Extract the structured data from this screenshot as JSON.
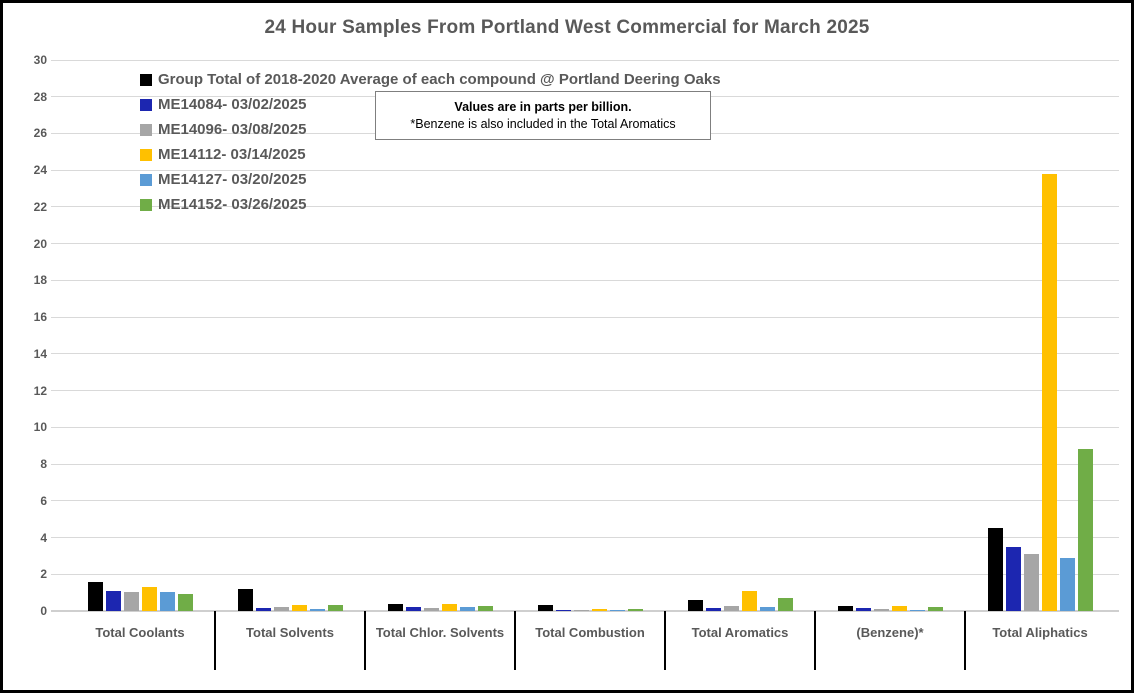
{
  "title": "24 Hour Samples From Portland West Commercial for March 2025",
  "annotation": {
    "line1": "Values are in parts per billion.",
    "line2": "*Benzene is also included in the Total Aromatics"
  },
  "colors": {
    "title_text": "#595959",
    "axis_text": "#595959",
    "gridline": "#D9D9D9",
    "category_divider": "#000000",
    "annotation_border": "#7F7F7F",
    "frame_border": "#000000"
  },
  "chart_data": {
    "type": "bar",
    "title": "24 Hour Samples From Portland West Commercial for March 2025",
    "xlabel": "",
    "ylabel": "",
    "ylim": [
      0,
      30
    ],
    "ytick_step": 2,
    "grid": true,
    "legend_position": "top-left-inside",
    "units": "parts per billion",
    "categories": [
      "Total Coolants",
      "Total Solvents",
      "Total Chlor. Solvents",
      "Total Combustion",
      "Total Aromatics",
      "(Benzene)*",
      "Total Aliphatics"
    ],
    "series": [
      {
        "name": "Group Total of 2018-2020 Average of each compound @ Portland Deering Oaks",
        "color": "#000000",
        "values": [
          1.6,
          1.2,
          0.4,
          0.3,
          0.6,
          0.25,
          4.5
        ]
      },
      {
        "name": "ME14084- 03/02/2025",
        "color": "#1C26B0",
        "values": [
          1.1,
          0.15,
          0.2,
          0.05,
          0.15,
          0.15,
          3.5
        ]
      },
      {
        "name": "ME14096- 03/08/2025",
        "color": "#A6A6A6",
        "values": [
          1.05,
          0.2,
          0.15,
          0.05,
          0.25,
          0.1,
          3.1
        ]
      },
      {
        "name": "ME14112- 03/14/2025",
        "color": "#FFC000",
        "values": [
          1.3,
          0.35,
          0.4,
          0.1,
          1.1,
          0.25,
          23.8
        ]
      },
      {
        "name": "ME14127- 03/20/2025",
        "color": "#5B9BD5",
        "values": [
          1.05,
          0.1,
          0.2,
          0.05,
          0.2,
          0.02,
          2.9
        ]
      },
      {
        "name": "ME14152- 03/26/2025",
        "color": "#70AD47",
        "values": [
          0.95,
          0.3,
          0.25,
          0.1,
          0.7,
          0.2,
          8.8
        ]
      }
    ]
  }
}
